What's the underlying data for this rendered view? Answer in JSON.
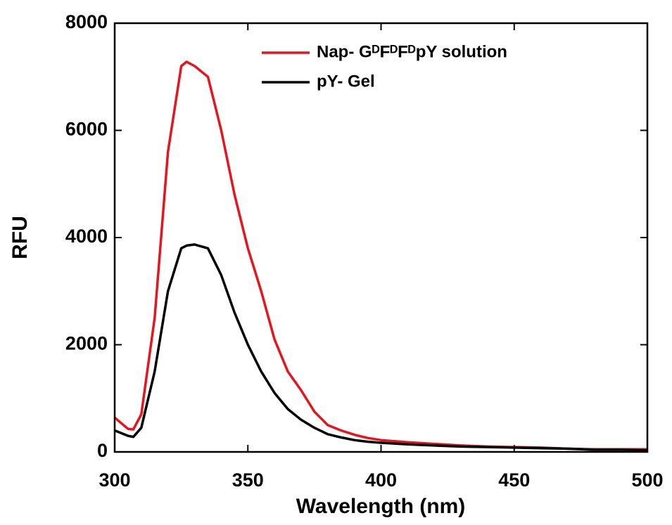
{
  "chart_data": {
    "type": "line",
    "x_label": "Wavelength (nm)",
    "y_label": "RFU",
    "x": [
      300,
      305,
      307,
      310,
      315,
      320,
      325,
      327,
      330,
      335,
      340,
      345,
      350,
      355,
      360,
      365,
      370,
      375,
      380,
      385,
      390,
      395,
      400,
      410,
      420,
      430,
      440,
      450,
      460,
      470,
      480,
      490,
      500
    ],
    "series": [
      {
        "name": "Nap- GᴰFᴰFᴰpY solution",
        "color": "#e8141c",
        "values": [
          640,
          430,
          420,
          700,
          2500,
          5600,
          7200,
          7280,
          7200,
          7000,
          6000,
          4800,
          3800,
          3000,
          2100,
          1500,
          1150,
          750,
          500,
          400,
          320,
          260,
          220,
          180,
          150,
          120,
          100,
          90,
          80,
          60,
          50,
          50,
          50
        ]
      },
      {
        "name": "pY- Gel",
        "color": "#000000",
        "values": [
          400,
          300,
          280,
          450,
          1500,
          3000,
          3800,
          3850,
          3870,
          3800,
          3300,
          2600,
          2000,
          1500,
          1100,
          800,
          600,
          450,
          330,
          270,
          220,
          190,
          170,
          140,
          120,
          100,
          90,
          80,
          70,
          60,
          40,
          40,
          30
        ]
      }
    ],
    "xlim": [
      300,
      500
    ],
    "xticks": [
      300,
      350,
      400,
      450,
      500
    ],
    "ylim": [
      0,
      8000
    ],
    "yticks": [
      0,
      2000,
      4000,
      6000,
      8000
    ],
    "grid": false,
    "legend": "upper right"
  }
}
